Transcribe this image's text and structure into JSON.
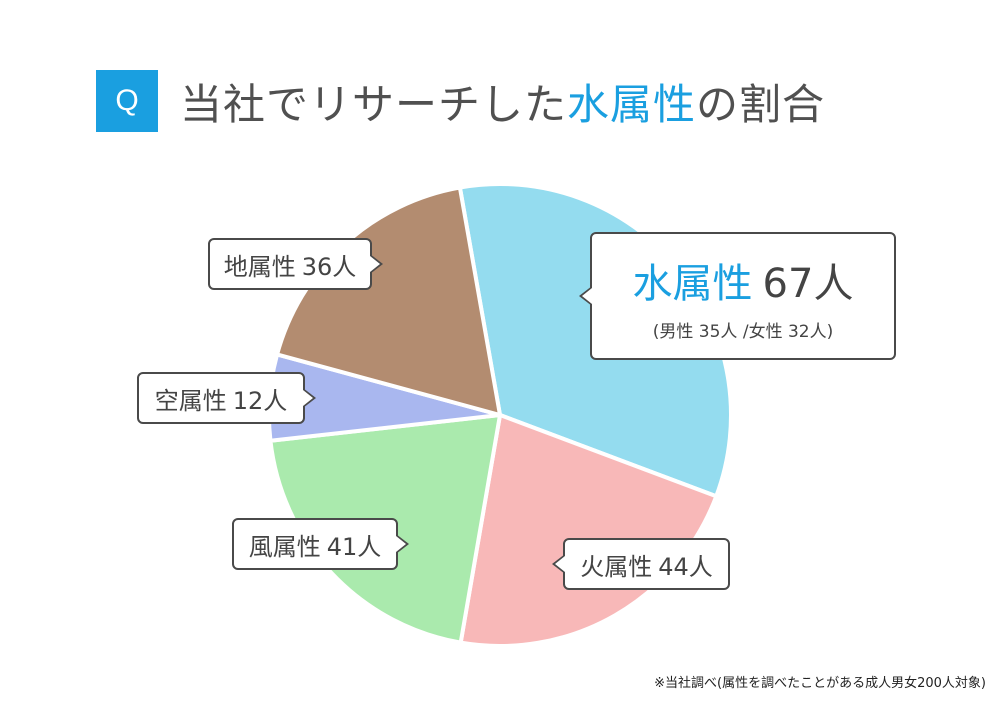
{
  "header": {
    "q_label": "Q",
    "title_prefix": "当社でリサーチした",
    "title_highlight": "水属性",
    "title_suffix": "の割合"
  },
  "colors": {
    "accent": "#1a9fe0",
    "water": "#94dcef",
    "fire": "#f8b8b8",
    "wind": "#aaeaad",
    "sky": "#a9b7ef",
    "earth": "#b38c70"
  },
  "chart_data": {
    "type": "pie",
    "title": "当社でリサーチした水属性の割合",
    "series": [
      {
        "name": "水属性",
        "value": 67,
        "unit": "人",
        "color": "#94dcef"
      },
      {
        "name": "火属性",
        "value": 44,
        "unit": "人",
        "color": "#f8b8b8"
      },
      {
        "name": "風属性",
        "value": 41,
        "unit": "人",
        "color": "#aaeaad"
      },
      {
        "name": "空属性",
        "value": 12,
        "unit": "人",
        "color": "#a9b7ef"
      },
      {
        "name": "地属性",
        "value": 36,
        "unit": "人",
        "color": "#b38c70"
      }
    ],
    "total": 200,
    "water_breakdown": "(男性 35人 /女性 32人)"
  },
  "labels": {
    "water_name": "水属性",
    "water_count": "67人",
    "water_breakdown": "(男性 35人 /女性 32人)",
    "fire_name": "火属性",
    "fire_count": "44人",
    "wind_name": "風属性",
    "wind_count": "41人",
    "sky_name": "空属性",
    "sky_count": "12人",
    "earth_name": "地属性",
    "earth_count": "36人"
  },
  "footnote": "※当社調べ(属性を調べたことがある成人男女200人対象)"
}
